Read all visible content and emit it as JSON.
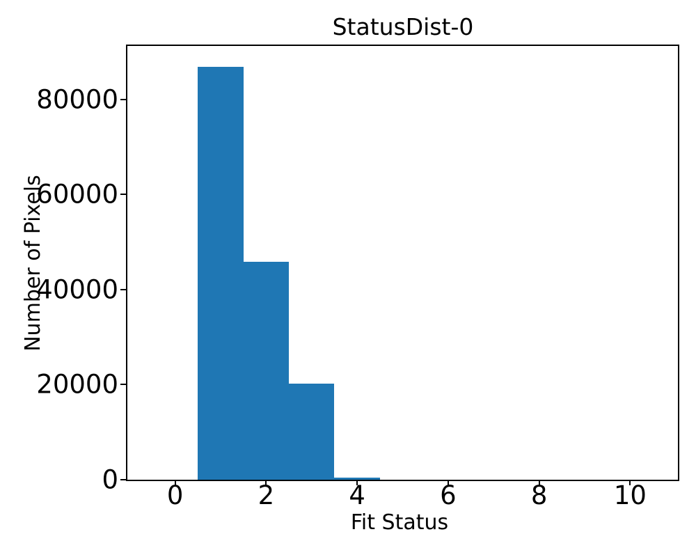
{
  "chart_data": {
    "type": "bar",
    "subtype": "histogram",
    "title": "StatusDist-0",
    "xlabel": "Fit Status",
    "ylabel": "Number of Pixels",
    "bin_edges": [
      -0.5,
      0.5,
      1.5,
      2.5,
      3.5,
      4.5,
      5.5,
      6.5,
      7.5,
      8.5,
      9.5,
      10.5
    ],
    "bin_centers": [
      0,
      1,
      2,
      3,
      4,
      5,
      6,
      7,
      8,
      9,
      10
    ],
    "counts": [
      0,
      86900,
      45900,
      20200,
      400,
      0,
      0,
      0,
      0,
      0,
      0
    ],
    "xticks": [
      0,
      2,
      4,
      6,
      8,
      10
    ],
    "yticks": [
      0,
      20000,
      40000,
      60000,
      80000
    ],
    "xlim": [
      -1.05,
      11.05
    ],
    "ylim": [
      0,
      91245
    ],
    "bar_color": "#1f77b4",
    "axis_color": "#000000",
    "background_color": "#ffffff",
    "grid": false,
    "legend": null
  }
}
